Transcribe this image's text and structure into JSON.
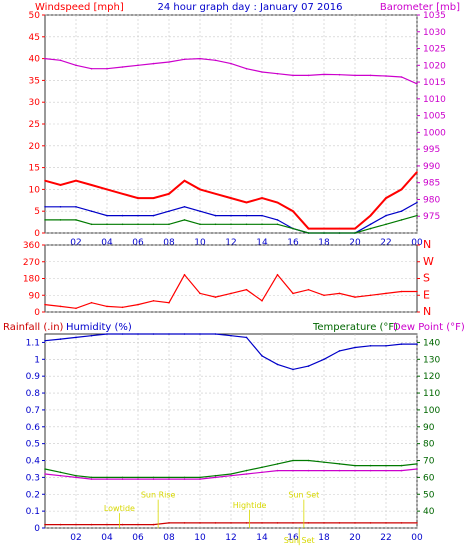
{
  "header": {
    "left_label": "Windspeed [mph]",
    "title": "24 hour graph day : January 07 2016",
    "right_label": "Barometer [mb]"
  },
  "bottom_header": {
    "rain_label": "Rainfall (.in)",
    "humidity_label": "Humidity (%)",
    "temp_label": "Temperature (°F)",
    "dew_label": "Dew Point (°F)"
  },
  "colors": {
    "red": "#ff0000",
    "blue": "#0000c8",
    "green": "#007a00",
    "magenta": "#cc00cc",
    "darkred": "#cc0000",
    "frame": "#333333",
    "grid": "#c8c8c8",
    "yellow": "#d8d800",
    "tick_blue": "#0000cc",
    "tick_green": "#006600"
  },
  "chart_data": [
    {
      "type": "line",
      "x": [
        0,
        1,
        2,
        3,
        4,
        5,
        6,
        7,
        8,
        9,
        10,
        11,
        12,
        13,
        14,
        15,
        16,
        17,
        18,
        19,
        20,
        21,
        22,
        23,
        24
      ],
      "xticks": [
        "02",
        "04",
        "06",
        "08",
        "10",
        "12",
        "14",
        "16",
        "18",
        "20",
        "22",
        "00"
      ],
      "xtick_positions": [
        2,
        4,
        6,
        8,
        10,
        12,
        14,
        16,
        18,
        20,
        22,
        24
      ],
      "left_ticks": [
        0,
        5,
        10,
        15,
        20,
        25,
        30,
        35,
        40,
        45,
        50
      ],
      "right_ticks": [
        975,
        980,
        985,
        990,
        995,
        1000,
        1005,
        1010,
        1015,
        1020,
        1025,
        1030,
        1035
      ],
      "ylim_left": [
        0,
        50
      ],
      "ylim_right": [
        970,
        1035
      ],
      "series": [
        {
          "axis": "left",
          "color": "red",
          "values": [
            12,
            11,
            12,
            11,
            10,
            9,
            8,
            8,
            9,
            12,
            10,
            9,
            8,
            7,
            8,
            7,
            5,
            1,
            1,
            1,
            1,
            4,
            8,
            10,
            14
          ]
        },
        {
          "axis": "left",
          "color": "blue",
          "values": [
            6,
            6,
            6,
            5,
            4,
            4,
            4,
            4,
            5,
            6,
            5,
            4,
            4,
            4,
            4,
            3,
            1,
            0,
            0,
            0,
            0,
            2,
            4,
            5,
            7
          ]
        },
        {
          "axis": "left",
          "color": "green",
          "values": [
            3,
            3,
            3,
            2,
            2,
            2,
            2,
            2,
            2,
            3,
            2,
            2,
            2,
            2,
            2,
            2,
            1,
            0,
            0,
            0,
            0,
            1,
            2,
            3,
            4
          ]
        },
        {
          "axis": "right",
          "color": "magenta",
          "values": [
            1022,
            1021.5,
            1020,
            1019,
            1019,
            1019.5,
            1020,
            1020.5,
            1021,
            1021.8,
            1022,
            1021.5,
            1020.5,
            1019,
            1018,
            1017.5,
            1017,
            1017,
            1017.3,
            1017.2,
            1017,
            1017,
            1016.8,
            1016.5,
            1014.5
          ]
        }
      ]
    },
    {
      "type": "line",
      "x": [
        0,
        1,
        2,
        3,
        4,
        5,
        6,
        7,
        8,
        9,
        10,
        11,
        12,
        13,
        14,
        15,
        16,
        17,
        18,
        19,
        20,
        21,
        22,
        23,
        24
      ],
      "xticks": [],
      "xtick_positions": [],
      "left_ticks": [
        0,
        90,
        180,
        270,
        360
      ],
      "right_ticks": [
        "N",
        "W",
        "S",
        "E",
        "N"
      ],
      "ylim_left": [
        0,
        360
      ],
      "series": [
        {
          "axis": "left",
          "color": "red",
          "values": [
            40,
            30,
            20,
            50,
            30,
            25,
            40,
            60,
            50,
            200,
            100,
            80,
            100,
            120,
            60,
            200,
            100,
            120,
            90,
            100,
            80,
            90,
            100,
            110,
            110
          ]
        }
      ]
    },
    {
      "type": "line",
      "x": [
        0,
        1,
        2,
        3,
        4,
        5,
        6,
        7,
        8,
        9,
        10,
        11,
        12,
        13,
        14,
        15,
        16,
        17,
        18,
        19,
        20,
        21,
        22,
        23,
        24
      ],
      "xticks": [
        "02",
        "04",
        "06",
        "08",
        "10",
        "12",
        "14",
        "16",
        "18",
        "20",
        "22",
        "00"
      ],
      "xtick_positions": [
        2,
        4,
        6,
        8,
        10,
        12,
        14,
        16,
        18,
        20,
        22,
        24
      ],
      "left_ticks": [
        0,
        0.1,
        0.2,
        0.3,
        0.4,
        0.5,
        0.6,
        0.7,
        0.8,
        0.9,
        1,
        1.1
      ],
      "right_ticks": [
        40,
        50,
        60,
        70,
        80,
        90,
        100,
        110,
        120,
        130,
        140
      ],
      "ylim_left": [
        0,
        1.15
      ],
      "ylim_right": [
        30,
        145
      ],
      "series": [
        {
          "axis": "left",
          "color": "darkred",
          "values": [
            0.02,
            0.02,
            0.02,
            0.02,
            0.02,
            0.02,
            0.02,
            0.02,
            0.03,
            0.03,
            0.03,
            0.03,
            0.03,
            0.03,
            0.03,
            0.03,
            0.03,
            0.03,
            0.03,
            0.03,
            0.03,
            0.03,
            0.03,
            0.03,
            0.03
          ]
        },
        {
          "axis": "left",
          "color": "blue",
          "values": [
            1.11,
            1.12,
            1.13,
            1.14,
            1.15,
            1.15,
            1.15,
            1.15,
            1.15,
            1.15,
            1.15,
            1.15,
            1.14,
            1.13,
            1.02,
            0.97,
            0.94,
            0.96,
            1.0,
            1.05,
            1.07,
            1.08,
            1.08,
            1.09,
            1.09
          ]
        },
        {
          "axis": "right",
          "color": "green",
          "values": [
            65,
            63,
            61,
            60,
            60,
            60,
            60,
            60,
            60,
            60,
            60,
            61,
            62,
            64,
            66,
            68,
            70,
            70,
            69,
            68,
            67,
            67,
            67,
            67,
            68
          ]
        },
        {
          "axis": "right",
          "color": "magenta",
          "values": [
            62,
            61,
            60,
            59,
            59,
            59,
            59,
            59,
            59,
            59,
            59,
            60,
            61,
            62,
            63,
            64,
            64,
            64,
            64,
            64,
            64,
            64,
            64,
            64,
            65
          ]
        }
      ],
      "annotations": [
        {
          "label": "Lowtide",
          "x": 4.8,
          "y": 0.1
        },
        {
          "label": "Sun Rise",
          "x": 7.3,
          "y": 0.18
        },
        {
          "label": "Hightide",
          "x": 13.2,
          "y": 0.12
        },
        {
          "label": "Sun Set",
          "x": 16.7,
          "y": 0.18
        },
        {
          "label": "Sun Set",
          "x": 16.4,
          "y": -0.09
        }
      ]
    }
  ]
}
